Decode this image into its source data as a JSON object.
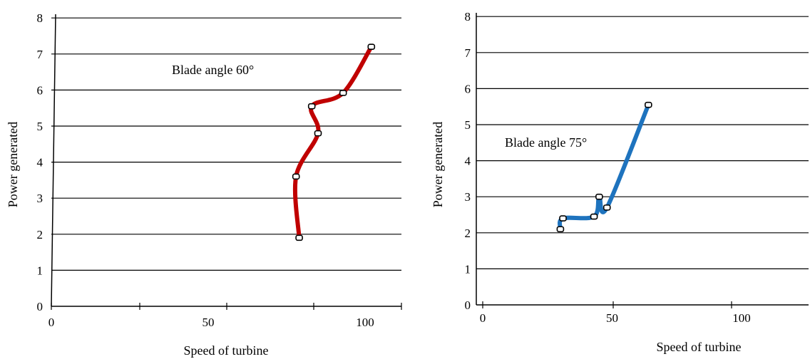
{
  "chart_data": [
    {
      "type": "line",
      "title": "",
      "xlabel": "Speed of turbine",
      "ylabel": "Power generated",
      "xlim": [
        0,
        100
      ],
      "ylim": [
        0,
        8
      ],
      "x_ticks": [
        "0",
        "50",
        "100"
      ],
      "y_ticks": [
        "0",
        "1",
        "2",
        "3",
        "4",
        "5",
        "6",
        "7",
        "8"
      ],
      "grid": "horizontal",
      "annotation": "Blade angle 60°",
      "series": [
        {
          "color": "#c00000",
          "x": [
            79,
            78,
            85,
            83,
            93,
            102
          ],
          "y": [
            1.9,
            3.6,
            4.8,
            5.55,
            5.92,
            7.2
          ]
        }
      ]
    },
    {
      "type": "line",
      "title": "",
      "xlabel": "Speed of turbine",
      "ylabel": "Power generated",
      "xlim": [
        0,
        100
      ],
      "ylim": [
        0,
        8
      ],
      "x_ticks": [
        "0",
        "50",
        "100"
      ],
      "y_ticks": [
        "0",
        "1",
        "2",
        "3",
        "4",
        "5",
        "6",
        "7",
        "8"
      ],
      "grid": "horizontal",
      "annotation": "Blade angle 75°",
      "series": [
        {
          "color": "#1e73be",
          "x": [
            30,
            31,
            43,
            45,
            48,
            64
          ],
          "y": [
            2.1,
            2.4,
            2.45,
            3.0,
            2.7,
            5.55
          ]
        }
      ]
    }
  ]
}
